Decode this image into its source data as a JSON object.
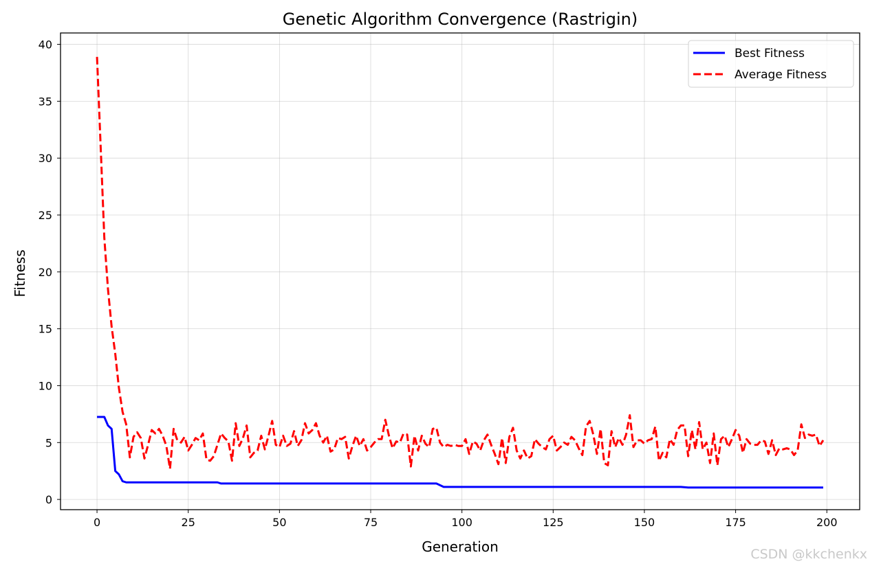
{
  "chart_data": {
    "type": "line",
    "title": "Genetic Algorithm Convergence (Rastrigin)",
    "xlabel": "Generation",
    "ylabel": "Fitness",
    "xlim": [
      -10,
      209
    ],
    "ylim": [
      -0.9,
      41
    ],
    "xticks": [
      0,
      25,
      50,
      75,
      100,
      125,
      150,
      175,
      200
    ],
    "yticks": [
      0,
      5,
      10,
      15,
      20,
      25,
      30,
      35,
      40
    ],
    "grid": true,
    "legend_position": "top-right",
    "series": [
      {
        "name": "Best Fitness",
        "color": "#0000ff",
        "style": "solid",
        "points": [
          [
            0,
            7.25
          ],
          [
            2,
            7.25
          ],
          [
            3,
            6.5
          ],
          [
            4,
            6.2
          ],
          [
            5,
            2.5
          ],
          [
            6,
            2.2
          ],
          [
            7,
            1.6
          ],
          [
            8,
            1.5
          ],
          [
            33,
            1.5
          ],
          [
            34,
            1.4
          ],
          [
            93,
            1.4
          ],
          [
            95,
            1.1
          ],
          [
            160,
            1.1
          ],
          [
            162,
            1.05
          ],
          [
            199,
            1.05
          ]
        ]
      },
      {
        "name": "Average Fitness",
        "color": "#ff0000",
        "style": "dashed",
        "points": [
          [
            0,
            38.9
          ],
          [
            1,
            31
          ],
          [
            2,
            23
          ],
          [
            3,
            18.5
          ],
          [
            4,
            15.2
          ],
          [
            5,
            12.8
          ],
          [
            6,
            9.8
          ],
          [
            7,
            7.7
          ],
          [
            8,
            6.6
          ],
          [
            9,
            3.7
          ],
          [
            10,
            5.5
          ],
          [
            11,
            5.9
          ],
          [
            12,
            5.4
          ],
          [
            13,
            3.6
          ],
          [
            14,
            4.8
          ],
          [
            15,
            6.1
          ],
          [
            16,
            5.8
          ],
          [
            17,
            6.2
          ],
          [
            18,
            5.6
          ],
          [
            19,
            4.7
          ],
          [
            20,
            2.7
          ],
          [
            21,
            6.2
          ],
          [
            22,
            5.2
          ],
          [
            23,
            5.0
          ],
          [
            24,
            5.5
          ],
          [
            25,
            4.3
          ],
          [
            26,
            4.8
          ],
          [
            27,
            5.4
          ],
          [
            28,
            5.2
          ],
          [
            29,
            5.8
          ],
          [
            30,
            3.5
          ],
          [
            31,
            3.4
          ],
          [
            32,
            3.8
          ],
          [
            33,
            4.8
          ],
          [
            34,
            5.8
          ],
          [
            35,
            5.4
          ],
          [
            36,
            5.1
          ],
          [
            37,
            3.4
          ],
          [
            38,
            6.7
          ],
          [
            39,
            4.7
          ],
          [
            40,
            5.4
          ],
          [
            41,
            6.5
          ],
          [
            42,
            3.7
          ],
          [
            43,
            4.1
          ],
          [
            44,
            4.3
          ],
          [
            45,
            5.6
          ],
          [
            46,
            4.4
          ],
          [
            47,
            5.6
          ],
          [
            48,
            6.9
          ],
          [
            49,
            4.8
          ],
          [
            50,
            4.6
          ],
          [
            51,
            5.6
          ],
          [
            52,
            4.7
          ],
          [
            53,
            4.9
          ],
          [
            54,
            6.0
          ],
          [
            55,
            4.7
          ],
          [
            56,
            5.2
          ],
          [
            57,
            6.7
          ],
          [
            58,
            5.8
          ],
          [
            59,
            6.1
          ],
          [
            60,
            6.7
          ],
          [
            61,
            5.6
          ],
          [
            62,
            5.0
          ],
          [
            63,
            5.6
          ],
          [
            64,
            4.2
          ],
          [
            65,
            4.4
          ],
          [
            66,
            5.4
          ],
          [
            67,
            5.3
          ],
          [
            68,
            5.5
          ],
          [
            69,
            3.6
          ],
          [
            70,
            4.7
          ],
          [
            71,
            5.6
          ],
          [
            72,
            4.7
          ],
          [
            73,
            5.3
          ],
          [
            74,
            4.3
          ],
          [
            75,
            4.6
          ],
          [
            76,
            5.0
          ],
          [
            77,
            5.3
          ],
          [
            78,
            5.3
          ],
          [
            79,
            7.0
          ],
          [
            80,
            5.6
          ],
          [
            81,
            4.5
          ],
          [
            82,
            5.1
          ],
          [
            83,
            5.0
          ],
          [
            84,
            5.8
          ],
          [
            85,
            5.7
          ],
          [
            86,
            2.9
          ],
          [
            87,
            5.6
          ],
          [
            88,
            4.3
          ],
          [
            89,
            5.6
          ],
          [
            90,
            4.9
          ],
          [
            91,
            4.6
          ],
          [
            92,
            6.2
          ],
          [
            93,
            6.3
          ],
          [
            94,
            5.0
          ],
          [
            95,
            4.6
          ],
          [
            96,
            4.8
          ],
          [
            97,
            4.7
          ],
          [
            98,
            4.8
          ],
          [
            99,
            4.7
          ],
          [
            100,
            4.7
          ],
          [
            101,
            5.3
          ],
          [
            102,
            4.0
          ],
          [
            103,
            5.1
          ],
          [
            104,
            4.9
          ],
          [
            105,
            4.3
          ],
          [
            106,
            5.2
          ],
          [
            107,
            5.7
          ],
          [
            108,
            4.8
          ],
          [
            109,
            4.0
          ],
          [
            110,
            3.1
          ],
          [
            111,
            5.4
          ],
          [
            112,
            3.2
          ],
          [
            113,
            5.5
          ],
          [
            114,
            6.3
          ],
          [
            115,
            4.3
          ],
          [
            116,
            3.6
          ],
          [
            117,
            4.3
          ],
          [
            118,
            3.6
          ],
          [
            119,
            3.8
          ],
          [
            120,
            5.3
          ],
          [
            121,
            4.9
          ],
          [
            122,
            4.6
          ],
          [
            123,
            4.4
          ],
          [
            124,
            5.3
          ],
          [
            125,
            5.6
          ],
          [
            126,
            4.3
          ],
          [
            127,
            4.6
          ],
          [
            128,
            5.0
          ],
          [
            129,
            4.8
          ],
          [
            130,
            5.5
          ],
          [
            131,
            5.2
          ],
          [
            132,
            4.5
          ],
          [
            133,
            3.9
          ],
          [
            134,
            6.4
          ],
          [
            135,
            6.9
          ],
          [
            136,
            5.7
          ],
          [
            137,
            4.0
          ],
          [
            138,
            6.2
          ],
          [
            139,
            3.2
          ],
          [
            140,
            3.0
          ],
          [
            141,
            6.0
          ],
          [
            142,
            4.6
          ],
          [
            143,
            5.4
          ],
          [
            144,
            4.8
          ],
          [
            145,
            5.7
          ],
          [
            146,
            7.4
          ],
          [
            147,
            4.6
          ],
          [
            148,
            5.2
          ],
          [
            149,
            5.2
          ],
          [
            150,
            4.9
          ],
          [
            151,
            5.2
          ],
          [
            152,
            5.3
          ],
          [
            153,
            6.4
          ],
          [
            154,
            3.4
          ],
          [
            155,
            4.1
          ],
          [
            156,
            3.7
          ],
          [
            157,
            5.3
          ],
          [
            158,
            4.8
          ],
          [
            159,
            6.1
          ],
          [
            160,
            6.5
          ],
          [
            161,
            6.5
          ],
          [
            162,
            3.8
          ],
          [
            163,
            6.1
          ],
          [
            164,
            4.4
          ],
          [
            165,
            6.8
          ],
          [
            166,
            4.4
          ],
          [
            167,
            5.0
          ],
          [
            168,
            3.2
          ],
          [
            169,
            5.8
          ],
          [
            170,
            3.0
          ],
          [
            171,
            5.3
          ],
          [
            172,
            5.6
          ],
          [
            173,
            4.6
          ],
          [
            174,
            5.3
          ],
          [
            175,
            6.1
          ],
          [
            176,
            5.6
          ],
          [
            177,
            4.1
          ],
          [
            178,
            5.3
          ],
          [
            179,
            4.9
          ],
          [
            180,
            4.8
          ],
          [
            181,
            4.8
          ],
          [
            182,
            5.2
          ],
          [
            183,
            5.1
          ],
          [
            184,
            4.0
          ],
          [
            185,
            5.2
          ],
          [
            186,
            3.9
          ],
          [
            187,
            4.5
          ],
          [
            188,
            4.4
          ],
          [
            189,
            4.5
          ],
          [
            190,
            4.4
          ],
          [
            191,
            3.9
          ],
          [
            192,
            4.3
          ],
          [
            193,
            6.6
          ],
          [
            194,
            5.4
          ],
          [
            195,
            5.7
          ],
          [
            196,
            5.6
          ],
          [
            197,
            5.7
          ],
          [
            198,
            4.7
          ],
          [
            199,
            5.2
          ]
        ]
      }
    ]
  },
  "watermark": "CSDN @kkchenkx"
}
